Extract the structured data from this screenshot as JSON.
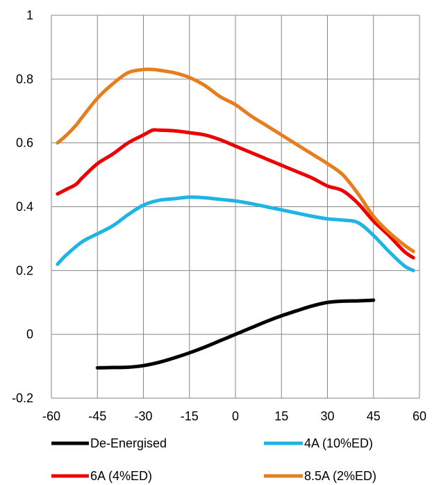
{
  "chart_data": {
    "type": "line",
    "title": "",
    "xlabel": "",
    "ylabel": "",
    "xlim": [
      -60,
      60
    ],
    "ylim": [
      -0.2,
      1
    ],
    "x_ticks": [
      -60,
      -45,
      -30,
      -15,
      0,
      15,
      30,
      45,
      60
    ],
    "y_ticks": [
      -0.2,
      0,
      0.2,
      0.4,
      0.6,
      0.8,
      1
    ],
    "x_tick_labels": [
      "-60",
      "-45",
      "-30",
      "-15",
      "0",
      "15",
      "30",
      "45",
      "60"
    ],
    "y_tick_labels": [
      "-0.2",
      "0",
      "0.2",
      "0.4",
      "0.6",
      "0.8",
      "1"
    ],
    "grid": true,
    "legend_position": "bottom",
    "series": [
      {
        "name": "De-Energised",
        "color": "#000000",
        "x": [
          -45,
          -40,
          -35,
          -30,
          -25,
          -20,
          -15,
          -10,
          -5,
          0,
          5,
          10,
          15,
          20,
          25,
          30,
          35,
          40,
          45
        ],
        "y": [
          -0.105,
          -0.104,
          -0.103,
          -0.098,
          -0.088,
          -0.074,
          -0.058,
          -0.04,
          -0.02,
          0.0,
          0.02,
          0.04,
          0.058,
          0.074,
          0.089,
          0.1,
          0.104,
          0.105,
          0.107
        ]
      },
      {
        "name": "4A (10%ED)",
        "color": "#1EB4E6",
        "x": [
          -58,
          -55,
          -50,
          -45,
          -40,
          -35,
          -30,
          -25,
          -20,
          -15,
          -10,
          -5,
          0,
          5,
          10,
          15,
          20,
          25,
          30,
          35,
          40,
          45,
          50,
          55,
          58
        ],
        "y": [
          0.22,
          0.25,
          0.29,
          0.315,
          0.34,
          0.375,
          0.405,
          0.42,
          0.425,
          0.43,
          0.428,
          0.423,
          0.418,
          0.41,
          0.4,
          0.39,
          0.38,
          0.37,
          0.362,
          0.358,
          0.35,
          0.31,
          0.26,
          0.215,
          0.2
        ]
      },
      {
        "name": "6A (4%ED)",
        "color": "#EE0000",
        "x": [
          -58,
          -55,
          -52,
          -50,
          -45,
          -40,
          -35,
          -30,
          -27,
          -25,
          -20,
          -15,
          -10,
          -5,
          0,
          5,
          10,
          15,
          20,
          25,
          30,
          35,
          40,
          45,
          50,
          55,
          58
        ],
        "y": [
          0.44,
          0.455,
          0.47,
          0.49,
          0.535,
          0.565,
          0.6,
          0.625,
          0.64,
          0.64,
          0.638,
          0.632,
          0.625,
          0.61,
          0.59,
          0.57,
          0.55,
          0.53,
          0.51,
          0.49,
          0.465,
          0.45,
          0.41,
          0.355,
          0.31,
          0.26,
          0.24
        ]
      },
      {
        "name": "8.5A (2%ED)",
        "color": "#E67E1E",
        "x": [
          -58,
          -55,
          -52,
          -50,
          -45,
          -40,
          -35,
          -30,
          -27,
          -25,
          -20,
          -15,
          -10,
          -5,
          0,
          5,
          10,
          15,
          20,
          25,
          30,
          35,
          40,
          45,
          50,
          55,
          58
        ],
        "y": [
          0.6,
          0.625,
          0.655,
          0.68,
          0.74,
          0.785,
          0.82,
          0.83,
          0.83,
          0.828,
          0.82,
          0.805,
          0.78,
          0.745,
          0.72,
          0.685,
          0.655,
          0.625,
          0.595,
          0.565,
          0.535,
          0.5,
          0.44,
          0.37,
          0.32,
          0.28,
          0.26
        ]
      }
    ]
  }
}
